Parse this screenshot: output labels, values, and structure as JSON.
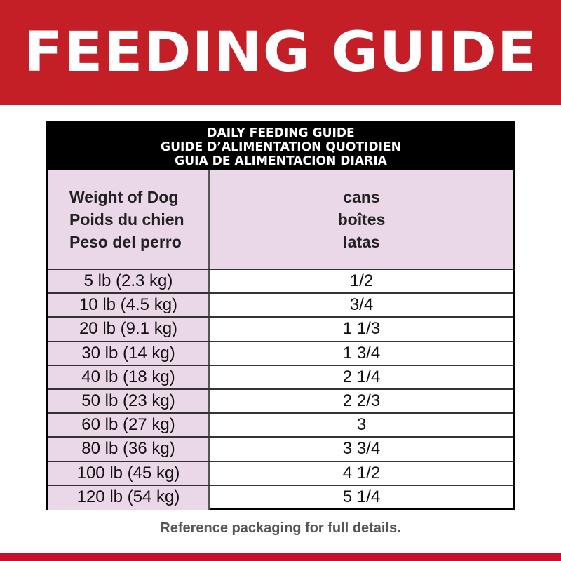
{
  "banner": {
    "title": "FEEDING GUIDE",
    "color": "#c41f26"
  },
  "table": {
    "title_lines": [
      "DAILY FEEDING GUIDE",
      "GUIDE D’ALIMENTATION QUOTIDIEN",
      "GUIA DE ALIMENTACION DIARIA"
    ],
    "column_headers": {
      "weight": [
        "Weight of Dog",
        "Poids du chien",
        "Peso del perro"
      ],
      "amount": [
        "cans",
        "boîtes",
        "latas"
      ]
    },
    "rows": [
      {
        "weight": "5 lb (2.3 kg)",
        "amount": "1/2"
      },
      {
        "weight": "10 lb (4.5 kg)",
        "amount": "3/4"
      },
      {
        "weight": "20 lb (9.1 kg)",
        "amount": "1 1/3"
      },
      {
        "weight": "30 lb (14 kg)",
        "amount": "1 3/4"
      },
      {
        "weight": "40 lb (18 kg)",
        "amount": "2 1/4"
      },
      {
        "weight": "50 lb (23 kg)",
        "amount": "2 2/3"
      },
      {
        "weight": "60 lb (27 kg)",
        "amount": "3"
      },
      {
        "weight": "80 lb (36 kg)",
        "amount": "3 3/4"
      },
      {
        "weight": "100 lb (45 kg)",
        "amount": "4 1/2"
      },
      {
        "weight": "120 lb (54 kg)",
        "amount": "5 1/4"
      }
    ]
  },
  "footer": {
    "note": "Reference packaging for full details."
  }
}
